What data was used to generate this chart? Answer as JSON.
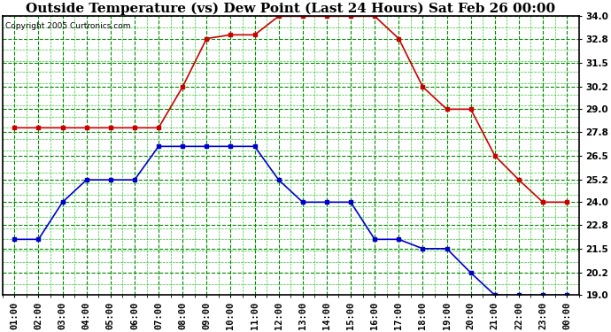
{
  "title": "Outside Temperature (vs) Dew Point (Last 24 Hours) Sat Feb 26 00:00",
  "copyright": "Copyright 2005 Curtronics.com",
  "x_labels": [
    "01:00",
    "02:00",
    "03:00",
    "04:00",
    "05:00",
    "06:00",
    "07:00",
    "08:00",
    "09:00",
    "10:00",
    "11:00",
    "12:00",
    "13:00",
    "14:00",
    "15:00",
    "16:00",
    "17:00",
    "18:00",
    "19:00",
    "20:00",
    "21:00",
    "22:00",
    "23:00",
    "00:00"
  ],
  "red_data": [
    28.0,
    28.0,
    28.0,
    28.0,
    28.0,
    28.0,
    28.0,
    30.2,
    32.8,
    33.0,
    33.0,
    34.0,
    34.0,
    34.0,
    34.0,
    34.0,
    32.8,
    30.2,
    29.0,
    29.0,
    26.5,
    25.2,
    24.0,
    24.0
  ],
  "blue_data": [
    22.0,
    22.0,
    24.0,
    25.2,
    25.2,
    25.2,
    27.0,
    27.0,
    27.0,
    27.0,
    27.0,
    25.2,
    24.0,
    24.0,
    24.0,
    22.0,
    22.0,
    21.5,
    21.5,
    20.2,
    19.0,
    19.0,
    19.0,
    19.0
  ],
  "red_color": "#cc0000",
  "blue_color": "#0000cc",
  "bg_color": "#ffffff",
  "plot_bg_color": "#ffffff",
  "grid_color_major": "#008800",
  "grid_color_minor": "#00bb00",
  "ylim": [
    19.0,
    34.0
  ],
  "yticks": [
    19.0,
    20.2,
    21.5,
    22.8,
    24.0,
    25.2,
    26.5,
    27.8,
    29.0,
    30.2,
    31.5,
    32.8,
    34.0
  ],
  "title_fontsize": 11,
  "tick_fontsize": 7.5,
  "marker": "s",
  "marker_size": 3,
  "linewidth": 1.2
}
